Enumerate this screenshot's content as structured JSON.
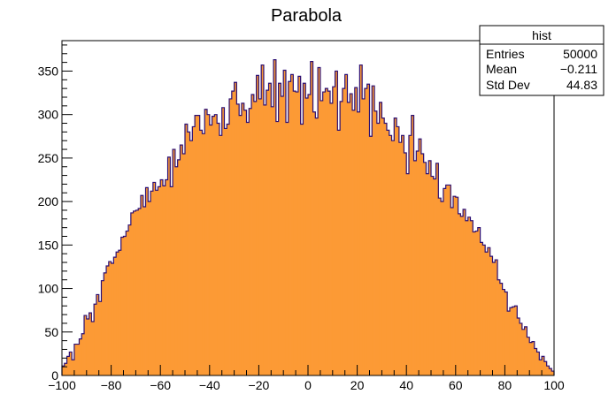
{
  "chart_data": {
    "type": "bar",
    "title": "Parabola",
    "xlabel": "",
    "ylabel": "",
    "xlim": [
      -100,
      100
    ],
    "ylim": [
      0,
      385
    ],
    "x_ticks": [
      -100,
      -80,
      -60,
      -40,
      -20,
      0,
      20,
      40,
      60,
      80,
      100
    ],
    "x_tick_labels": [
      "−100",
      "−80",
      "−60",
      "−40",
      "−20",
      "0",
      "20",
      "40",
      "60",
      "80",
      "100"
    ],
    "y_ticks": [
      0,
      50,
      100,
      150,
      200,
      250,
      300,
      350
    ],
    "y_tick_labels": [
      "0",
      "50",
      "100",
      "150",
      "200",
      "250",
      "300",
      "350"
    ],
    "bin_width": 1,
    "bin_edges_start": -100,
    "bin_count": 200,
    "values": [
      11,
      14,
      22,
      27,
      18,
      36,
      36,
      42,
      48,
      69,
      65,
      72,
      62,
      82,
      93,
      85,
      109,
      118,
      126,
      131,
      129,
      136,
      142,
      144,
      159,
      160,
      166,
      173,
      187,
      189,
      190,
      192,
      207,
      194,
      216,
      200,
      212,
      222,
      213,
      217,
      225,
      218,
      225,
      251,
      217,
      260,
      240,
      248,
      265,
      255,
      289,
      280,
      270,
      286,
      299,
      299,
      282,
      278,
      306,
      300,
      288,
      298,
      300,
      290,
      276,
      308,
      284,
      289,
      318,
      327,
      337,
      312,
      299,
      313,
      305,
      291,
      307,
      323,
      315,
      345,
      318,
      357,
      311,
      328,
      336,
      309,
      363,
      292,
      336,
      321,
      351,
      291,
      338,
      346,
      327,
      326,
      344,
      289,
      336,
      319,
      323,
      361,
      303,
      296,
      354,
      316,
      326,
      330,
      327,
      313,
      332,
      350,
      282,
      315,
      330,
      346,
      314,
      324,
      305,
      331,
      303,
      357,
      318,
      330,
      335,
      275,
      333,
      304,
      290,
      314,
      296,
      290,
      282,
      276,
      270,
      296,
      286,
      268,
      276,
      256,
      232,
      276,
      299,
      247,
      258,
      272,
      255,
      245,
      232,
      247,
      229,
      226,
      244,
      204,
      200,
      215,
      219,
      219,
      193,
      206,
      205,
      186,
      183,
      191,
      178,
      182,
      178,
      165,
      166,
      170,
      153,
      150,
      142,
      147,
      137,
      130,
      133,
      110,
      106,
      99,
      96,
      74,
      78,
      79,
      80,
      66,
      60,
      53,
      56,
      44,
      38,
      39,
      31,
      27,
      18,
      22,
      16,
      11,
      8,
      5
    ],
    "fill_color": "#fc9a35",
    "line_color": "#2c0f73",
    "legend_position": "top-right",
    "grid": false,
    "stats_box": {
      "title": "hist",
      "rows": [
        {
          "label": "Entries",
          "value": "50000"
        },
        {
          "label": "Mean",
          "value": "−0.211"
        },
        {
          "label": "Std Dev",
          "value": "44.83"
        }
      ]
    }
  }
}
